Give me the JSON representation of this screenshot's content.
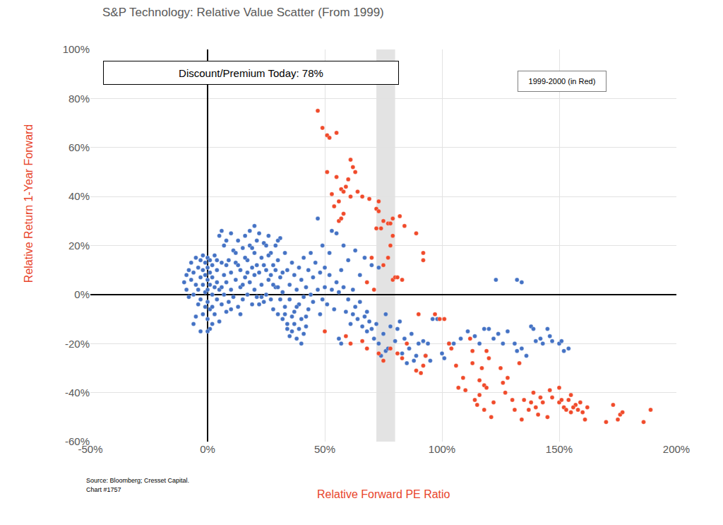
{
  "chart_data": {
    "type": "scatter",
    "title": "S&P Technology: Relative Value Scatter (From 1999)",
    "x_label": "Relative Forward PE Ratio",
    "y_label": "Relative Return 1-Year Forward",
    "annotations": [
      "Discount/Premium Today: 78%"
    ],
    "notes": [
      "Source: Bloomberg; Cresset Capital.",
      "Chart #1757"
    ],
    "xlim": [
      -50,
      200
    ],
    "ylim": [
      -60,
      100
    ],
    "xticks": [
      {
        "value": -50,
        "label": "-50%"
      },
      {
        "value": 0,
        "label": "0%"
      },
      {
        "value": 50,
        "label": "50%"
      },
      {
        "value": 100,
        "label": "100%"
      },
      {
        "value": 150,
        "label": "150%"
      },
      {
        "value": 200,
        "label": "200%"
      }
    ],
    "yticks": [
      {
        "value": -60,
        "label": "-60%"
      },
      {
        "value": -40,
        "label": "-40%"
      },
      {
        "value": -20,
        "label": "-20%"
      },
      {
        "value": 0,
        "label": "0%"
      },
      {
        "value": 20,
        "label": "20%"
      },
      {
        "value": 40,
        "label": "40%"
      },
      {
        "value": 60,
        "label": "60%"
      },
      {
        "value": 80,
        "label": "80%"
      },
      {
        "value": 100,
        "label": "100%"
      }
    ],
    "grid": true,
    "marker": "circle",
    "band": [
      72,
      80
    ],
    "series": [
      {
        "color": "#4472c4",
        "x": [
          -10,
          -9,
          -9,
          -8,
          -8,
          -7,
          -7,
          -6,
          -6,
          -5,
          -5,
          -5,
          -4,
          -4,
          -4,
          -3,
          -3,
          -3,
          -2,
          -2,
          -2,
          -2,
          -1,
          -1,
          -1,
          -1,
          0,
          0,
          0,
          0,
          0,
          0,
          1,
          1,
          1,
          1,
          1,
          2,
          2,
          2,
          2,
          3,
          3,
          3,
          4,
          4,
          4,
          5,
          5,
          5,
          6,
          6,
          6,
          7,
          7,
          7,
          8,
          8,
          8,
          9,
          9,
          10,
          10,
          10,
          11,
          11,
          12,
          12,
          13,
          13,
          14,
          14,
          15,
          15,
          16,
          16,
          17,
          17,
          18,
          18,
          19,
          19,
          20,
          20,
          20,
          21,
          21,
          22,
          22,
          23,
          23,
          24,
          24,
          25,
          25,
          26,
          26,
          27,
          27,
          28,
          28,
          29,
          29,
          30,
          30,
          31,
          31,
          32,
          32,
          33,
          33,
          34,
          34,
          35,
          35,
          36,
          36,
          37,
          37,
          38,
          38,
          39,
          39,
          40,
          40,
          41,
          41,
          42,
          42,
          43,
          43,
          44,
          44,
          45,
          45,
          46,
          47,
          47,
          48,
          48,
          49,
          49,
          50,
          50,
          51,
          52,
          52,
          53,
          53,
          54,
          55,
          55,
          56,
          56,
          57,
          57,
          58,
          58,
          59,
          60,
          60,
          61,
          62,
          62,
          63,
          63,
          64,
          65,
          65,
          66,
          67,
          67,
          68,
          68,
          69,
          70,
          70,
          71,
          72,
          73,
          73,
          74,
          75,
          76,
          76,
          77,
          78,
          80,
          81,
          82,
          83,
          84,
          85,
          86,
          87,
          88,
          89,
          90,
          92,
          93,
          94,
          95,
          96,
          98,
          100,
          101,
          103,
          105,
          108,
          111,
          114,
          116,
          118,
          120,
          122,
          124,
          126,
          128,
          131,
          132,
          134,
          136,
          138,
          139,
          140,
          142,
          143,
          145,
          146,
          147,
          150,
          151,
          152,
          154,
          123,
          132,
          134,
          -6,
          -3,
          0,
          2,
          4,
          6,
          8,
          10,
          12,
          14,
          16,
          18,
          20,
          22,
          24,
          26,
          28,
          30,
          32,
          34,
          35,
          36,
          37,
          38,
          39,
          40,
          41,
          42,
          33,
          31,
          30,
          29,
          27,
          25,
          23,
          21,
          19,
          17,
          15,
          13
        ],
        "values": [
          5,
          8,
          2,
          10,
          -1,
          6,
          13,
          0,
          9,
          15,
          4,
          -9,
          11,
          2,
          -4,
          7,
          14,
          -2,
          16,
          4,
          -8,
          10,
          13,
          1,
          -5,
          8,
          15,
          6,
          -3,
          -10,
          11,
          2,
          14,
          -14,
          4,
          9,
          -6,
          -12,
          7,
          0,
          12,
          16,
          3,
          -8,
          10,
          -2,
          5,
          24,
          -11,
          2,
          26,
          13,
          -4,
          8,
          20,
          0,
          22,
          -7,
          5,
          14,
          -3,
          25,
          9,
          2,
          18,
          -1,
          6,
          13,
          22,
          -5,
          3,
          10,
          19,
          -2,
          24,
          7,
          0,
          14,
          26,
          5,
          -4,
          11,
          28,
          17,
          2,
          22,
          -1,
          9,
          25,
          4,
          15,
          -3,
          21,
          10,
          0,
          24,
          6,
          -2,
          17,
          12,
          -6,
          20,
          3,
          14,
          -8,
          23,
          7,
          -10,
          1,
          17,
          -5,
          10,
          -12,
          4,
          -2,
          13,
          -15,
          -7,
          8,
          -18,
          2,
          11,
          -4,
          -20,
          6,
          -1,
          15,
          -9,
          3,
          10,
          -6,
          0,
          17,
          -3,
          7,
          13,
          31,
          2,
          -8,
          9,
          20,
          -2,
          11,
          3,
          -4,
          17,
          8,
          26,
          2,
          -6,
          25,
          5,
          -18,
          1,
          10,
          -20,
          20,
          3,
          -7,
          -2,
          14,
          -12,
          2,
          -8,
          18,
          -5,
          -10,
          -3,
          8,
          -13,
          -9,
          15,
          -7,
          -15,
          -11,
          -14,
          12,
          -18,
          -12,
          -20,
          11,
          -25,
          -16,
          -8,
          -23,
          -22,
          -13,
          -19,
          -14,
          -11,
          -24,
          -18,
          -28,
          -22,
          -16,
          -27,
          -25,
          -20,
          -19,
          -25,
          -20,
          -27,
          -10,
          -10,
          -24,
          -26,
          -20,
          -20,
          -18,
          -15,
          -17,
          -20,
          -14,
          -14,
          -18,
          -16,
          -20,
          -15,
          -20,
          -23,
          -22,
          -25,
          -13,
          -14,
          -19,
          -18,
          -20,
          -14,
          -17,
          -19,
          -20,
          -19,
          -23,
          -22,
          6,
          6,
          5,
          -12,
          -15,
          -15,
          -5,
          14,
          3,
          12,
          -6,
          17,
          -8,
          15,
          20,
          8,
          -4,
          12,
          16,
          4,
          22,
          9,
          -14,
          -17,
          -9,
          -12,
          -5,
          -14,
          -10,
          -16,
          -13,
          -8,
          -2,
          3,
          10,
          8,
          20,
          -1,
          12,
          19,
          9,
          4,
          12
        ]
      },
      {
        "name": "1999-2000 (in Red)",
        "color": "#f04a2a",
        "x": [
          47,
          49,
          51,
          52,
          55,
          51,
          55,
          57,
          58,
          59,
          61,
          60,
          62,
          63,
          53,
          56,
          58,
          54,
          56,
          57,
          61,
          64,
          66,
          69,
          72,
          73,
          73,
          75,
          77,
          78,
          79,
          74,
          72,
          82,
          84,
          89,
          92,
          92,
          70,
          68,
          71,
          75,
          79,
          80,
          81,
          83,
          78,
          79,
          77,
          50,
          59,
          61,
          66,
          68,
          73,
          75,
          78,
          81,
          83,
          85,
          89,
          91,
          92,
          90,
          93,
          97,
          99,
          101,
          103,
          104,
          106,
          107,
          109,
          110,
          112,
          113,
          113,
          114,
          116,
          116,
          117,
          118,
          118,
          119,
          120,
          121,
          122,
          125,
          126,
          127,
          128,
          130,
          133,
          134,
          135,
          138,
          139,
          140,
          141,
          142,
          143,
          145,
          146,
          147,
          150,
          150,
          152,
          153,
          154,
          155,
          155,
          157,
          158,
          159,
          160,
          161,
          162,
          170,
          173,
          175,
          176,
          177,
          186,
          189,
          156,
          151,
          137,
          131,
          119,
          115
        ],
        "values": [
          75,
          68,
          65,
          64,
          66,
          50,
          48,
          43,
          42,
          44,
          55,
          47,
          52,
          50,
          41,
          38,
          33,
          36,
          30,
          31,
          40,
          42,
          40,
          39,
          35,
          38,
          34,
          30,
          29,
          29,
          31,
          27,
          27,
          32,
          28,
          25,
          17,
          14,
          15,
          5,
          2,
          12,
          6,
          7,
          7,
          6,
          20,
          24,
          15,
          -15,
          -17,
          -20,
          -19,
          -22,
          -24,
          -27,
          -22,
          -24,
          -26,
          -20,
          -31,
          -32,
          -29,
          -8,
          -25,
          -8,
          -10,
          -10,
          -20,
          -22,
          -29,
          -38,
          -34,
          -39,
          -18,
          -23,
          -28,
          -43,
          -41,
          -35,
          -30,
          -37,
          -47,
          -23,
          -26,
          -50,
          -44,
          -30,
          -36,
          -40,
          -34,
          -43,
          -28,
          -51,
          -43,
          -44,
          -40,
          -46,
          -49,
          -42,
          -44,
          -50,
          -39,
          -42,
          -38,
          -44,
          -46,
          -47,
          -43,
          -48,
          -41,
          -45,
          -47,
          -44,
          -48,
          -51,
          -46,
          -52,
          -45,
          -51,
          -49,
          -48,
          -52,
          -47,
          -46,
          -43,
          -47,
          -47,
          -38,
          -45
        ]
      }
    ]
  }
}
